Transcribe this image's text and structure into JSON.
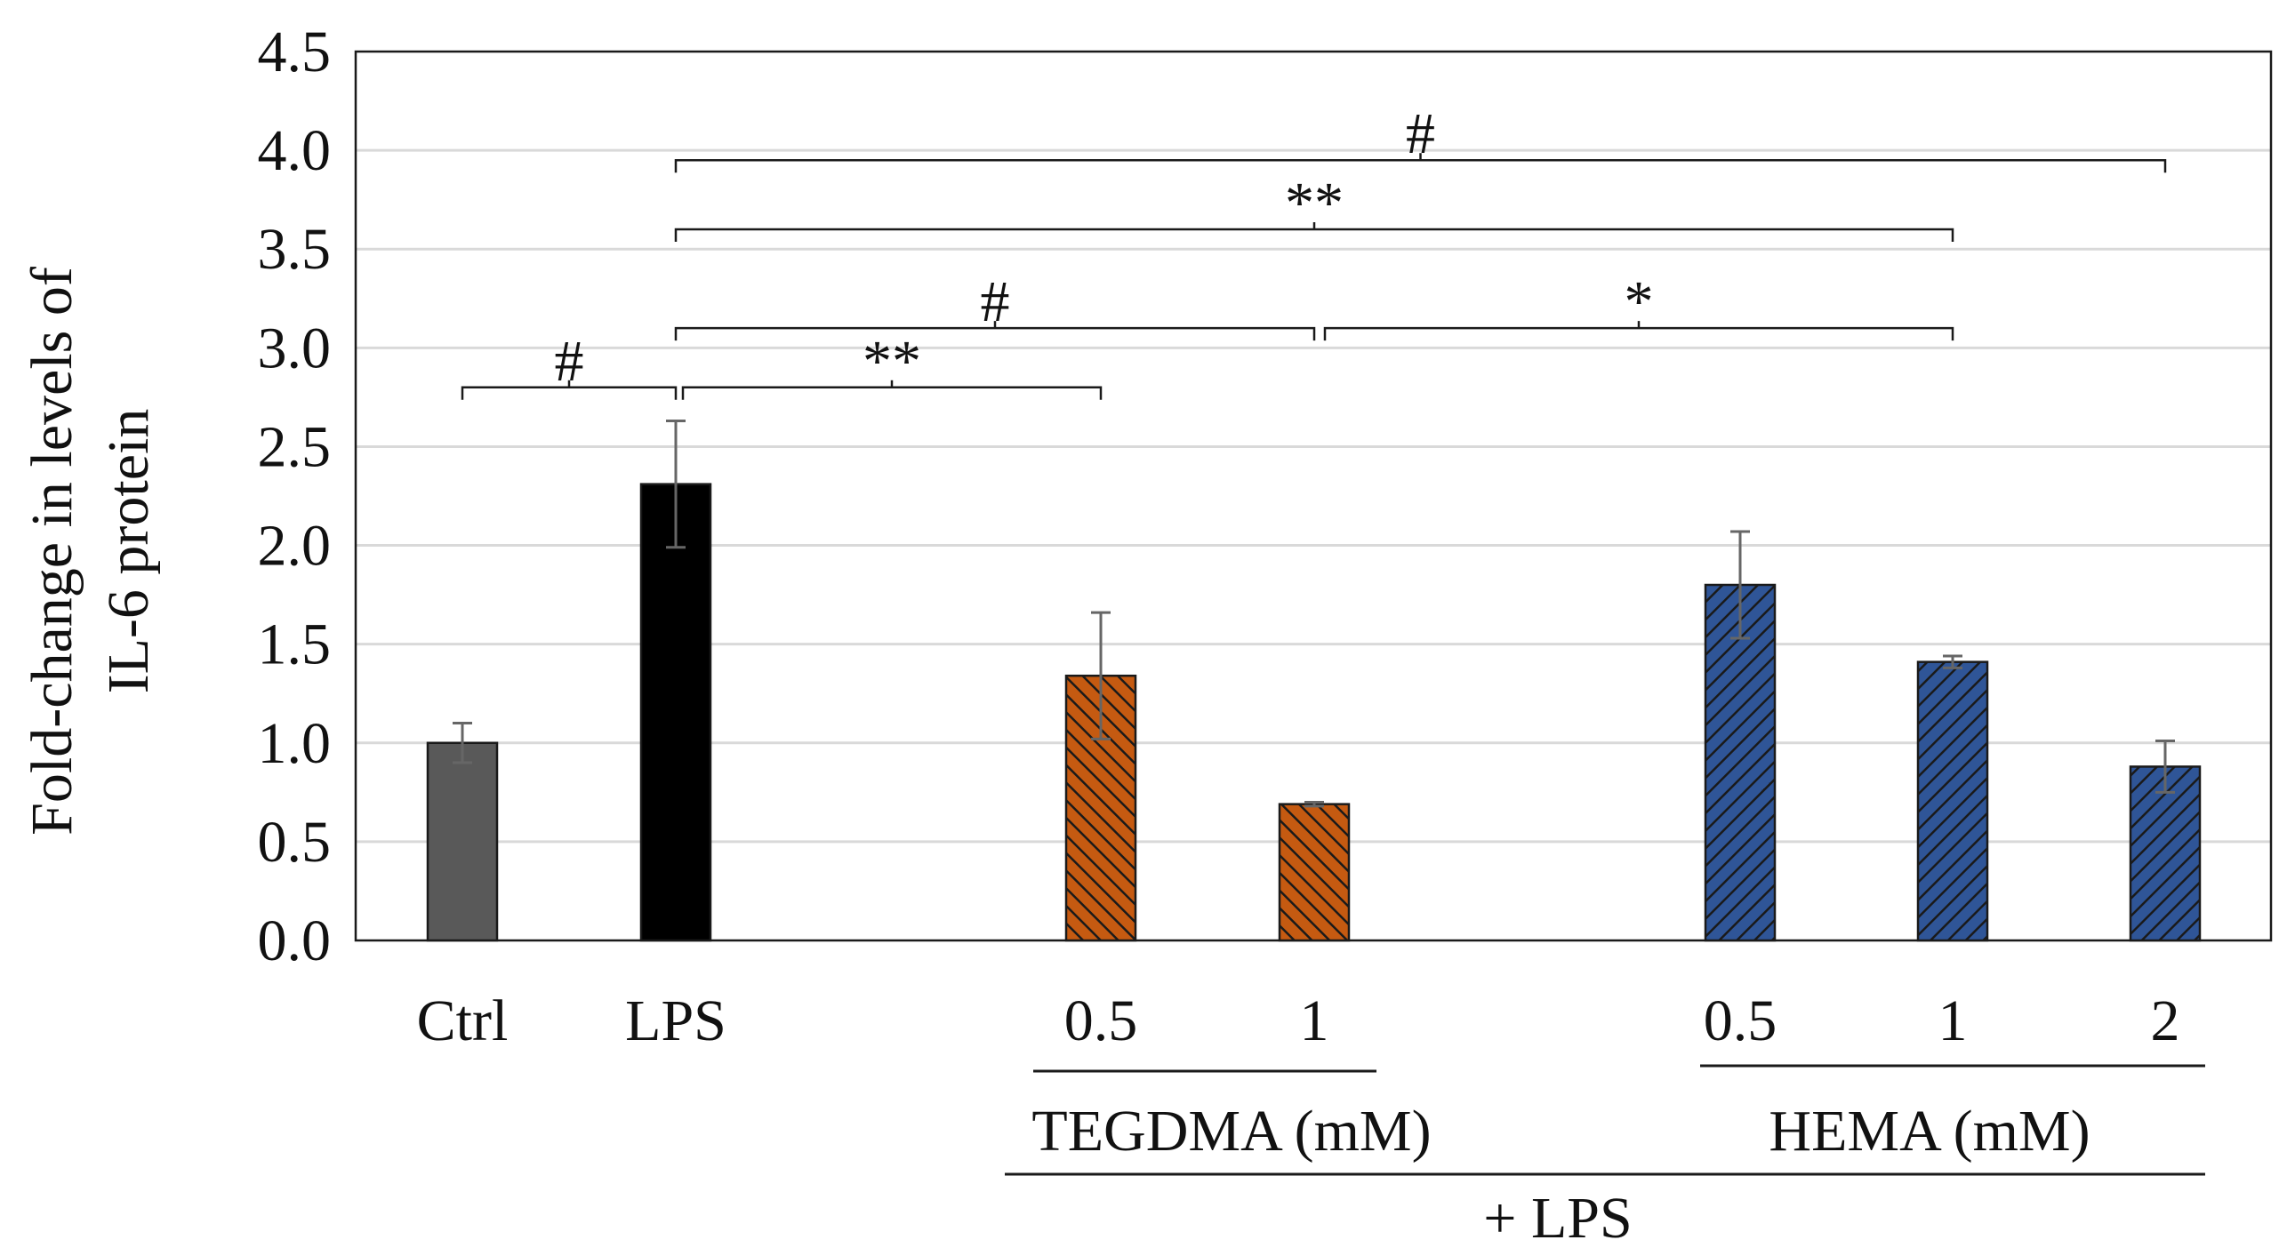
{
  "chart_data": {
    "type": "bar",
    "title": "",
    "ylabel_lines": [
      "Fold-change in levels of",
      "IL-6 protein"
    ],
    "xlabel": "",
    "ylim": [
      0,
      4.5
    ],
    "y_ticks": [
      0,
      0.5,
      1,
      1.5,
      2,
      2.5,
      3,
      3.5,
      4,
      4.5
    ],
    "y_tick_labels": [
      "0.0",
      "0.5",
      "1.0",
      "1.5",
      "2.0",
      "2.5",
      "3.0",
      "3.5",
      "4.0",
      "4.5"
    ],
    "grid": true,
    "bars": [
      {
        "label": "Ctrl",
        "value": 1.0,
        "error": 0.1,
        "fill": "gray"
      },
      {
        "label": "LPS",
        "value": 2.31,
        "error": 0.32,
        "fill": "black"
      },
      {
        "label": "0.5",
        "value": 1.34,
        "error": 0.32,
        "fill": "orange-hatch",
        "group": "TEGDMA (mM)"
      },
      {
        "label": "1",
        "value": 0.69,
        "error": 0.01,
        "fill": "orange-hatch",
        "group": "TEGDMA (mM)"
      },
      {
        "label": "0.5",
        "value": 1.8,
        "error": 0.27,
        "fill": "blue-hatch",
        "group": "HEMA (mM)"
      },
      {
        "label": "1",
        "value": 1.41,
        "error": 0.03,
        "fill": "blue-hatch",
        "group": "HEMA (mM)"
      },
      {
        "label": "2",
        "value": 0.88,
        "error": 0.13,
        "fill": "blue-hatch",
        "group": "HEMA (mM)"
      }
    ],
    "group_labels": {
      "tegdma": "TEGDMA  (mM)",
      "hema": "HEMA  (mM)",
      "lps": "+ LPS"
    },
    "significance": [
      {
        "from": 0,
        "to": 1,
        "y": 2.8,
        "label": "#"
      },
      {
        "from": 1,
        "to": 2,
        "y": 2.8,
        "label": "**"
      },
      {
        "from": 1,
        "to": 3,
        "y": 3.1,
        "label": "#"
      },
      {
        "from": 3,
        "to": 5,
        "y": 3.1,
        "label": "*"
      },
      {
        "from": 1,
        "to": 5,
        "y": 3.6,
        "label": "**"
      },
      {
        "from": 1,
        "to": 6,
        "y": 3.95,
        "label": "#"
      }
    ]
  },
  "colors": {
    "ctrl": "#595959",
    "lps": "#000000",
    "tegdma": "#c55a11",
    "hema": "#2f5597",
    "hatch_line": "#1a1a1a",
    "grid": "#d9d9d9",
    "axis": "#1a1a1a"
  }
}
